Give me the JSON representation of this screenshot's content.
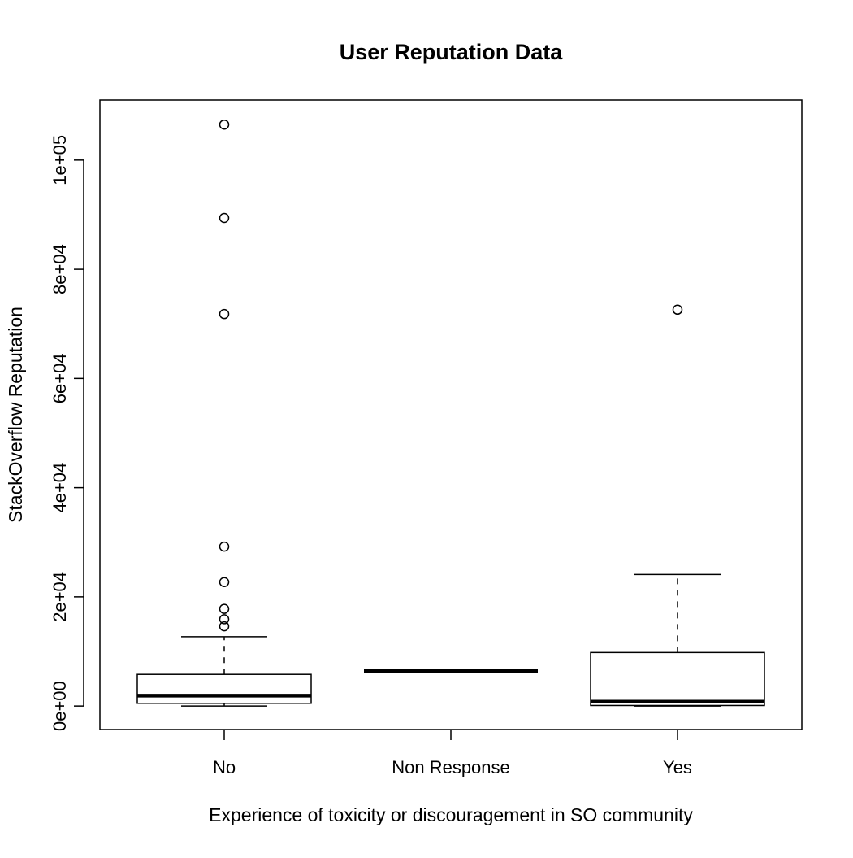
{
  "chart_data": {
    "type": "boxplot",
    "title": "User Reputation Data",
    "xlabel": "Experience of toxicity or discouragement in SO community",
    "ylabel": "StackOverflow Reputation",
    "ylim": [
      -4300,
      111000
    ],
    "yticks": [
      {
        "value": 0,
        "label": "0e+00"
      },
      {
        "value": 20000,
        "label": "2e+04"
      },
      {
        "value": 40000,
        "label": "4e+04"
      },
      {
        "value": 60000,
        "label": "6e+04"
      },
      {
        "value": 80000,
        "label": "8e+04"
      },
      {
        "value": 100000,
        "label": "1e+05"
      }
    ],
    "grid": false,
    "categories": [
      "No",
      "Non Response",
      "Yes"
    ],
    "boxes": [
      {
        "category": "No",
        "whisker_low": 0,
        "q1": 500,
        "median": 1900,
        "q3": 5800,
        "whisker_high": 12700,
        "outliers": [
          14600,
          15900,
          17800,
          22700,
          29200,
          71800,
          89400,
          106500
        ]
      },
      {
        "category": "Non Response",
        "whisker_low": 6400,
        "q1": 6400,
        "median": 6400,
        "q3": 6400,
        "whisker_high": 6400,
        "outliers": []
      },
      {
        "category": "Yes",
        "whisker_low": 0,
        "q1": 100,
        "median": 800,
        "q3": 9800,
        "whisker_high": 24100,
        "outliers": [
          72600
        ]
      }
    ]
  }
}
